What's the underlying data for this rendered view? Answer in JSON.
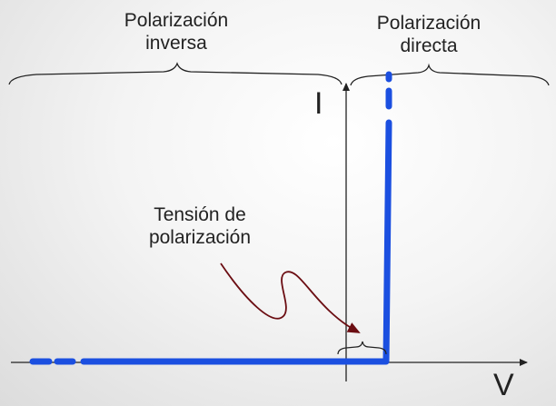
{
  "labels": {
    "reverse_line1": "Polarización",
    "reverse_line2": "inversa",
    "forward_line1": "Polarización",
    "forward_line2": "directa",
    "threshold_line1": "Tensión de",
    "threshold_line2": "polarización",
    "current_axis": "I",
    "voltage_axis": "V"
  },
  "colors": {
    "curve": "#1b4fe0",
    "arrow": "#6b0d12",
    "axes": "#222222"
  }
}
